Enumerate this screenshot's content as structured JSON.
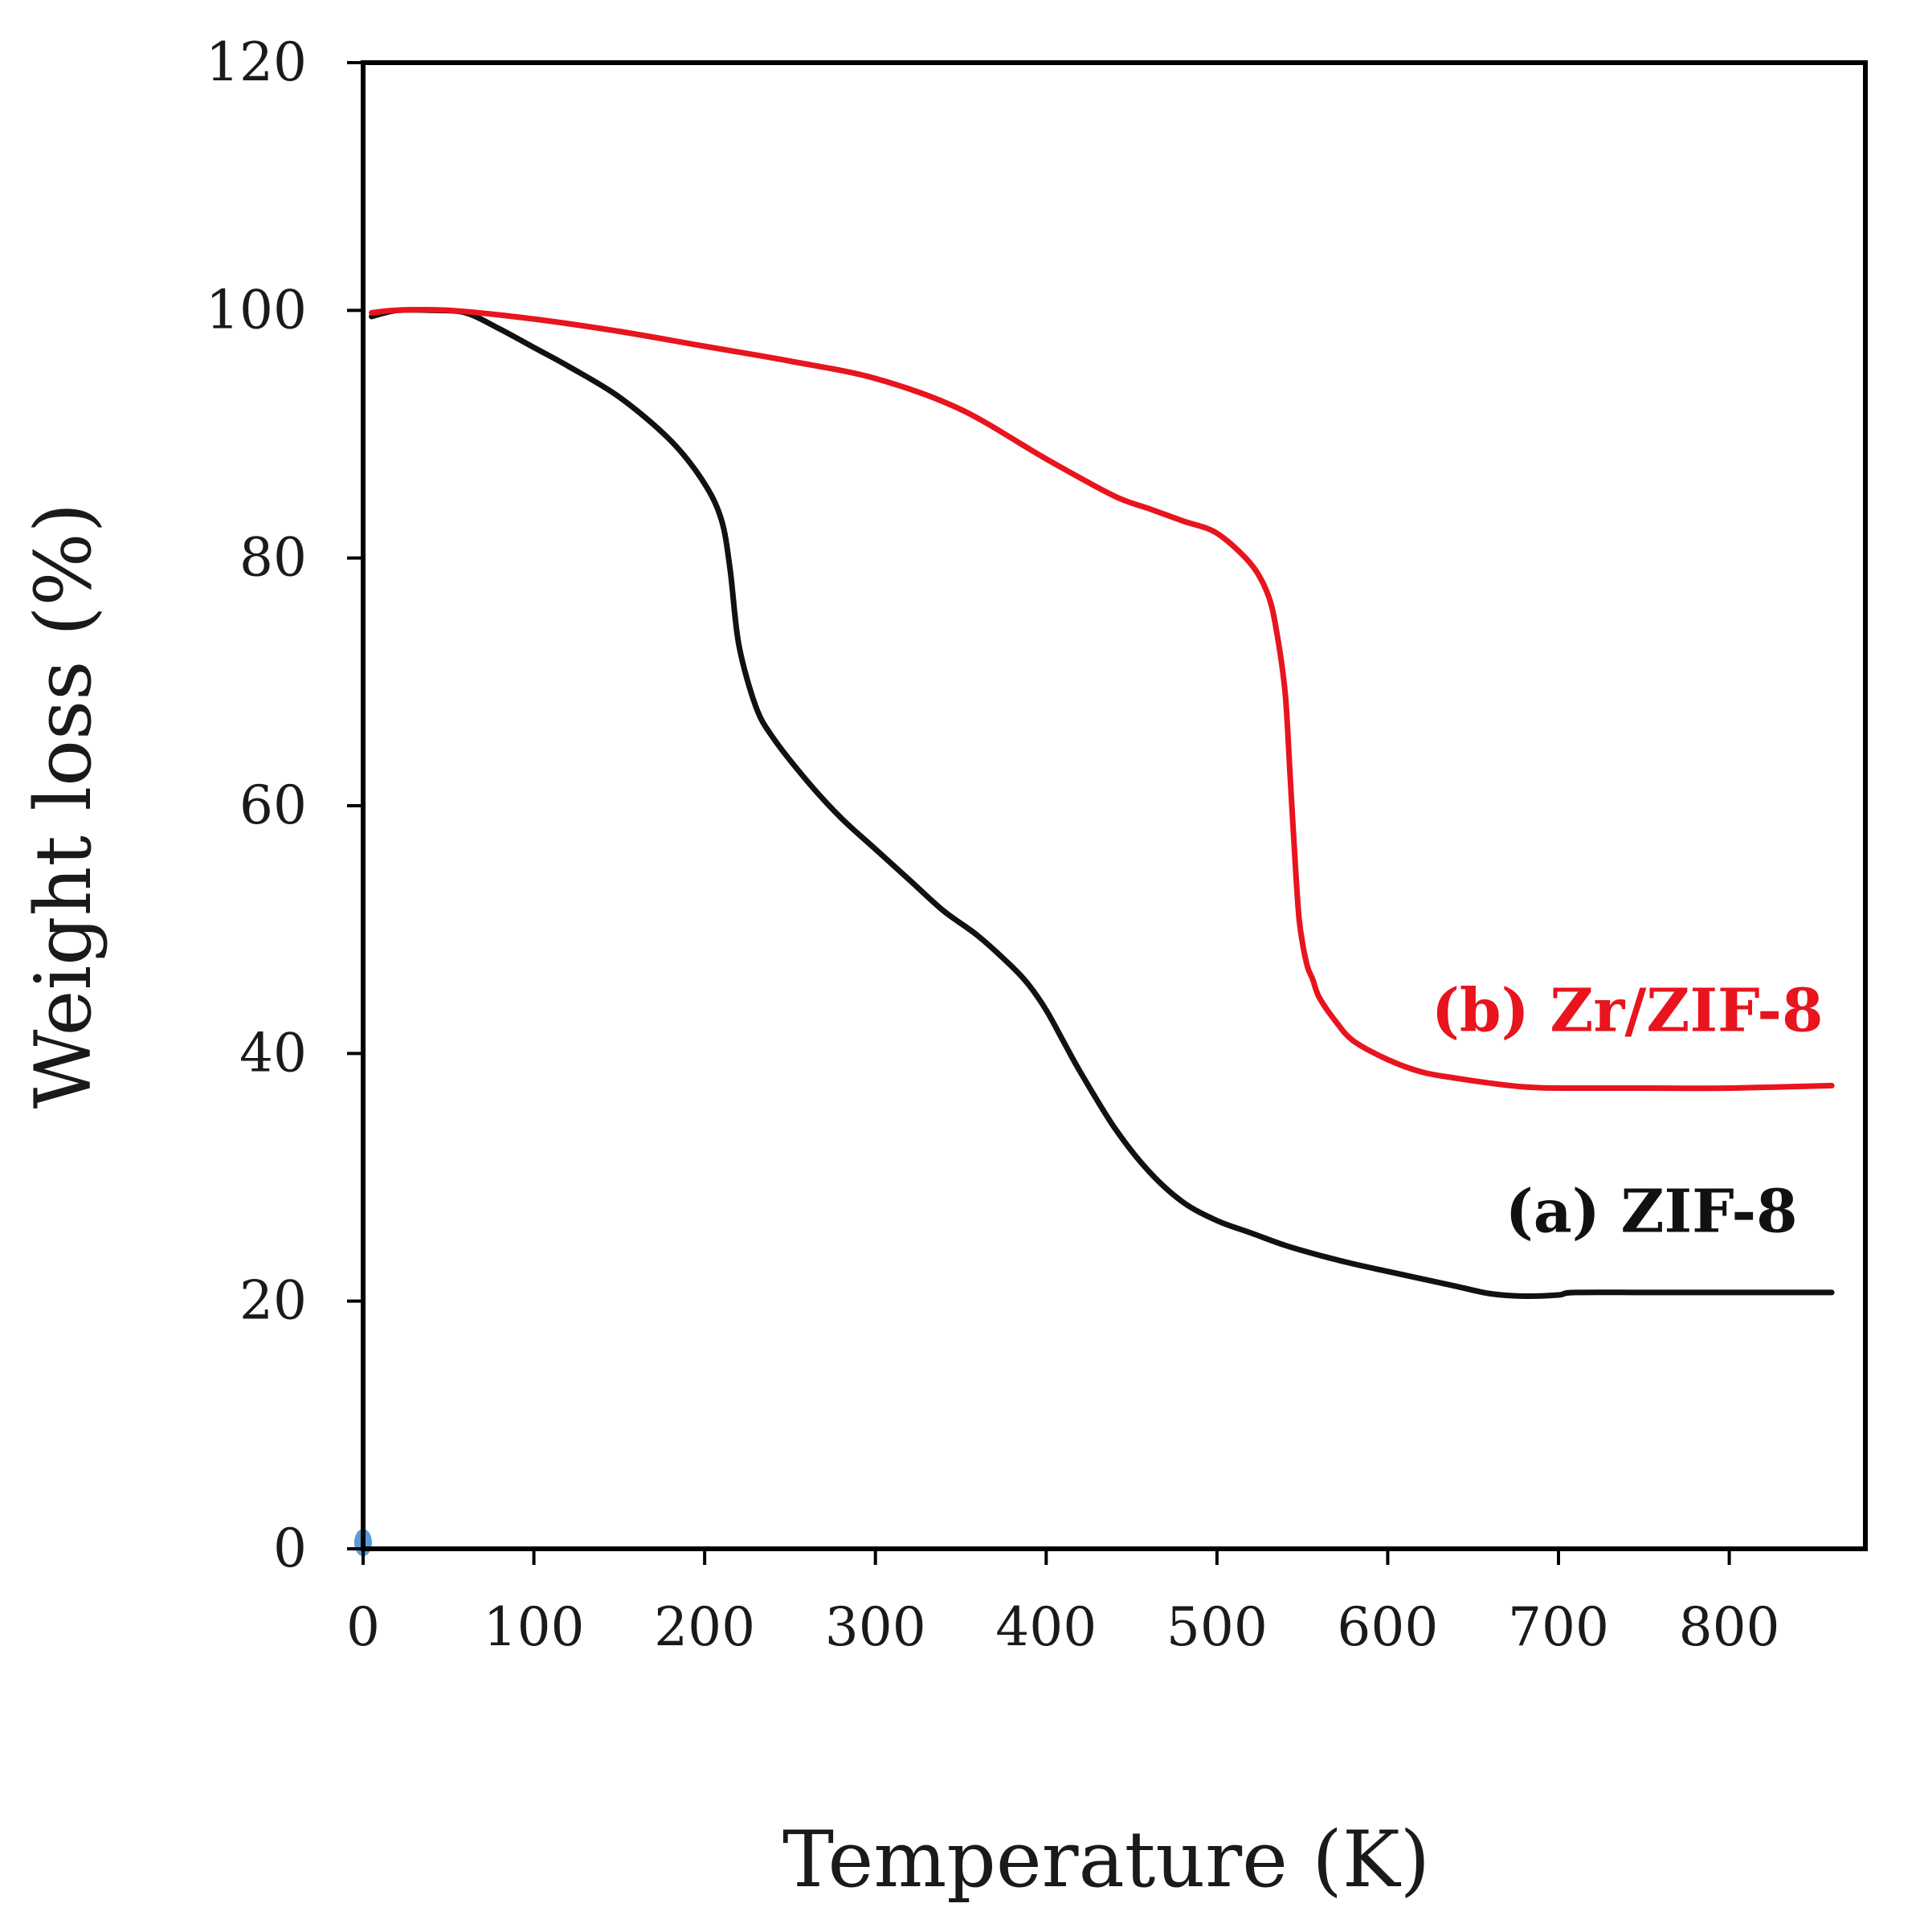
{
  "chart_data": {
    "type": "line",
    "title": "",
    "xlabel": "Temperature (K)",
    "ylabel": "Weight loss (%)",
    "xlim": [
      0,
      870
    ],
    "ylim": [
      0,
      120
    ],
    "xticks": [
      0,
      100,
      200,
      300,
      400,
      500,
      600,
      700,
      800
    ],
    "yticks": [
      0,
      20,
      40,
      60,
      80,
      100,
      120
    ],
    "xtick_labels": [
      "0",
      "100",
      "200",
      "300",
      "400",
      "500",
      "600",
      "700",
      "800"
    ],
    "ytick_labels": [
      "0",
      "20",
      "40",
      "60",
      "80",
      "100",
      "120"
    ],
    "grid": false,
    "series": [
      {
        "name": "(a) ZIF-8",
        "color": "#111111",
        "label_color": "#111111",
        "x": [
          5,
          20,
          40,
          60,
          80,
          100,
          120,
          150,
          180,
          200,
          210,
          215,
          220,
          230,
          240,
          260,
          280,
          300,
          320,
          340,
          360,
          380,
          390,
          400,
          410,
          420,
          440,
          460,
          480,
          500,
          520,
          540,
          560,
          580,
          600,
          620,
          640,
          660,
          680,
          700,
          710,
          760,
          860
        ],
        "y": [
          99.5,
          100,
          100,
          99.8,
          98.5,
          97,
          95.5,
          93,
          89.5,
          86,
          83,
          79,
          73,
          68,
          65.5,
          62,
          59,
          56.5,
          54,
          51.5,
          49.5,
          47,
          45.5,
          43.5,
          41,
          38.5,
          34,
          30.5,
          28,
          26.5,
          25.5,
          24.5,
          23.7,
          23,
          22.4,
          21.8,
          21.2,
          20.6,
          20.4,
          20.5,
          20.7,
          20.7,
          20.7
        ]
      },
      {
        "name": "(b) Zr/ZIF-8",
        "color": "#e8141e",
        "label_color": "#e8141e",
        "x": [
          5,
          20,
          50,
          100,
          150,
          200,
          250,
          300,
          350,
          400,
          440,
          460,
          480,
          500,
          520,
          530,
          535,
          540,
          543,
          546,
          548,
          550,
          553,
          556,
          560,
          570,
          580,
          600,
          620,
          640,
          660,
          680,
          700,
          750,
          800,
          860
        ],
        "y": [
          99.8,
          100,
          100,
          99.3,
          98.3,
          97.1,
          95.9,
          94.5,
          92,
          88,
          85,
          84,
          83,
          82,
          79.5,
          77,
          74,
          69,
          62,
          55,
          51,
          49,
          47,
          46,
          44.5,
          42.5,
          41,
          39.5,
          38.5,
          38,
          37.6,
          37.3,
          37.2,
          37.2,
          37.2,
          37.4
        ]
      }
    ],
    "annotations": [
      {
        "text": "(b) Zr/ZIF-8",
        "series": "(b) Zr/ZIF-8",
        "x": 855,
        "y": 41.8
      },
      {
        "text": "(a) ZIF-8",
        "series": "(a) ZIF-8",
        "x": 840,
        "y": 25.6
      }
    ],
    "markers": [
      {
        "x": 0,
        "y": 0.5,
        "color": "#5b9bd5"
      }
    ]
  }
}
